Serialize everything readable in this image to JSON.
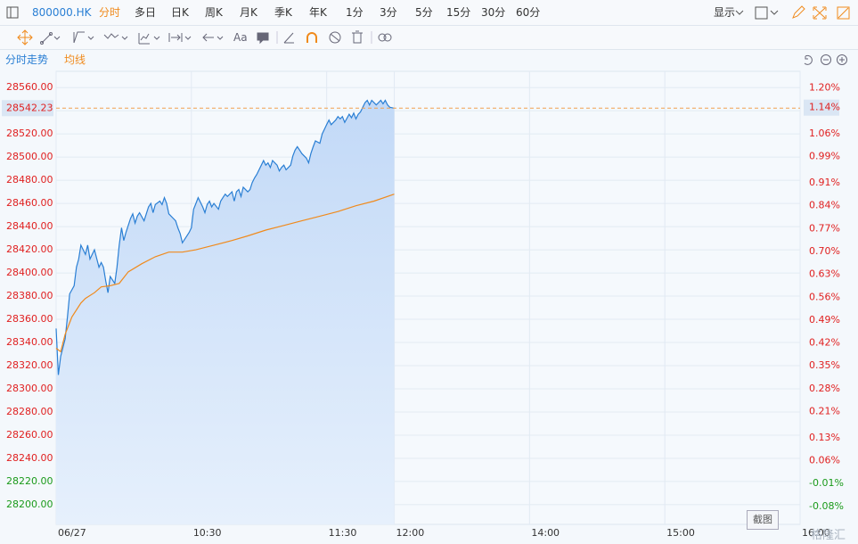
{
  "toolbar": {
    "symbol": "800000.HK",
    "periods": [
      "分时",
      "多日",
      "日K",
      "周K",
      "月K",
      "季K",
      "年K",
      "1分",
      "3分",
      "5分",
      "15分",
      "30分",
      "60分"
    ],
    "display": "显示",
    "text_tool": "Aa"
  },
  "screenshot_button": "截图",
  "watermark": "格隆汇",
  "chart_data": {
    "type": "line",
    "series": [
      {
        "name": "分时走势",
        "color": "#2a7fd4",
        "fill": true,
        "x": [
          0,
          1,
          2,
          4,
          5,
          6,
          8,
          9,
          10,
          11,
          13,
          14,
          15,
          16,
          17,
          19,
          20,
          21,
          22,
          23,
          24,
          26,
          27,
          28,
          29,
          30,
          31,
          33,
          34,
          35,
          36,
          37,
          39,
          40,
          41,
          42,
          43,
          44,
          46,
          47,
          48,
          49,
          50,
          52,
          53,
          54,
          55,
          56,
          57,
          59,
          60,
          61,
          62,
          63,
          65,
          66,
          67,
          68,
          69,
          70,
          72,
          73,
          74,
          75,
          76,
          78,
          79,
          80,
          81,
          82,
          83,
          85,
          86,
          87,
          88,
          89,
          91,
          92,
          93,
          94,
          95,
          96,
          98,
          99,
          100,
          101,
          102,
          104,
          105,
          106,
          107,
          108,
          109,
          111,
          112,
          113,
          114,
          115,
          117,
          118,
          119,
          120,
          121,
          122,
          124,
          125,
          126,
          127,
          128,
          130,
          131,
          132,
          133,
          134,
          135,
          137,
          138,
          139,
          140,
          141,
          142,
          144,
          145,
          146,
          147,
          148,
          150
        ],
        "values": [
          28352,
          28312,
          28328,
          28343,
          28362,
          28382,
          28389,
          28405,
          28412,
          28424,
          28416,
          28424,
          28412,
          28416,
          28420,
          28405,
          28409,
          28405,
          28393,
          28383,
          28397,
          28391,
          28405,
          28424,
          28439,
          28428,
          28435,
          28447,
          28451,
          28443,
          28449,
          28452,
          28445,
          28451,
          28457,
          28460,
          28452,
          28459,
          28462,
          28459,
          28465,
          28460,
          28451,
          28447,
          28445,
          28439,
          28434,
          28426,
          28429,
          28435,
          28439,
          28455,
          28460,
          28465,
          28457,
          28452,
          28459,
          28462,
          28457,
          28460,
          28455,
          28462,
          28465,
          28468,
          28466,
          28470,
          28462,
          28470,
          28472,
          28466,
          28474,
          28470,
          28472,
          28478,
          28482,
          28485,
          28493,
          28497,
          28493,
          28495,
          28491,
          28497,
          28493,
          28488,
          28491,
          28493,
          28489,
          28493,
          28501,
          28506,
          28509,
          28506,
          28503,
          28499,
          28495,
          28503,
          28509,
          28514,
          28512,
          28520,
          28524,
          28528,
          28532,
          28528,
          28532,
          28535,
          28533,
          28535,
          28530,
          28537,
          28534,
          28538,
          28533,
          28537,
          28539,
          28547,
          28549,
          28545,
          28549,
          28547,
          28545,
          28549,
          28546,
          28549,
          28545,
          28543,
          28542.23
        ]
      },
      {
        "name": "均线",
        "color": "#f08a1c",
        "fill": false,
        "x": [
          0,
          2,
          4,
          7,
          11,
          13,
          17,
          20,
          24,
          28,
          32,
          38,
          44,
          50,
          56,
          62,
          70,
          78,
          85,
          93,
          101,
          109,
          117,
          125,
          133,
          141,
          150
        ],
        "values": [
          28335,
          28332,
          28347,
          28362,
          28374,
          28378,
          28383,
          28388,
          28389,
          28391,
          28401,
          28408,
          28414,
          28418,
          28418,
          28420,
          28424,
          28428,
          28432,
          28437,
          28441,
          28445,
          28449,
          28453,
          28458,
          28462,
          28468
        ]
      }
    ],
    "xlim": [
      0,
      330
    ],
    "xticks": [
      {
        "value": 0,
        "label": "06/27"
      },
      {
        "value": 60,
        "label": "10:30"
      },
      {
        "value": 120,
        "label": "11:30"
      },
      {
        "value": 150,
        "label": "12:00"
      },
      {
        "value": 210,
        "label": "14:00"
      },
      {
        "value": 270,
        "label": "15:00"
      },
      {
        "value": 330,
        "label": "16:00"
      }
    ],
    "ylim": [
      28183,
      28574
    ],
    "yticks": [
      {
        "value": 28200,
        "label": "28200.00"
      },
      {
        "value": 28220,
        "label": "28220.00"
      },
      {
        "value": 28240,
        "label": "28240.00"
      },
      {
        "value": 28260,
        "label": "28260.00"
      },
      {
        "value": 28280,
        "label": "28280.00"
      },
      {
        "value": 28300,
        "label": "28300.00"
      },
      {
        "value": 28320,
        "label": "28320.00"
      },
      {
        "value": 28340,
        "label": "28340.00"
      },
      {
        "value": 28360,
        "label": "28360.00"
      },
      {
        "value": 28380,
        "label": "28380.00"
      },
      {
        "value": 28400,
        "label": "28400.00"
      },
      {
        "value": 28420,
        "label": "28420.00"
      },
      {
        "value": 28440,
        "label": "28440.00"
      },
      {
        "value": 28460,
        "label": "28460.00"
      },
      {
        "value": 28480,
        "label": "28480.00"
      },
      {
        "value": 28500,
        "label": "28500.00"
      },
      {
        "value": 28520,
        "label": "28520.00"
      },
      {
        "value": 28540,
        "label": "28540.00"
      },
      {
        "value": 28560,
        "label": "28560.00"
      }
    ],
    "y2lim": [
      -0.135,
      1.251
    ],
    "y2ticks": [
      {
        "value": -0.08,
        "label": "-0.08%"
      },
      {
        "value": -0.01,
        "label": "-0.01%"
      },
      {
        "value": 0.06,
        "label": "0.06%"
      },
      {
        "value": 0.13,
        "label": "0.13%"
      },
      {
        "value": 0.21,
        "label": "0.21%"
      },
      {
        "value": 0.28,
        "label": "0.28%"
      },
      {
        "value": 0.35,
        "label": "0.35%"
      },
      {
        "value": 0.42,
        "label": "0.42%"
      },
      {
        "value": 0.49,
        "label": "0.49%"
      },
      {
        "value": 0.56,
        "label": "0.56%"
      },
      {
        "value": 0.63,
        "label": "0.63%"
      },
      {
        "value": 0.7,
        "label": "0.70%"
      },
      {
        "value": 0.77,
        "label": "0.77%"
      },
      {
        "value": 0.84,
        "label": "0.84%"
      },
      {
        "value": 0.91,
        "label": "0.91%"
      },
      {
        "value": 0.99,
        "label": "0.99%"
      },
      {
        "value": 1.06,
        "label": "1.06%"
      },
      {
        "value": 1.2,
        "label": "1.20%"
      }
    ],
    "price_line": {
      "value": 28542.23,
      "pct": {
        "value": 1.14,
        "label": "1.14%"
      },
      "color": "#f0a050"
    },
    "grid": true,
    "up_color": "#e02020",
    "down_color": "#1a9a1a"
  }
}
